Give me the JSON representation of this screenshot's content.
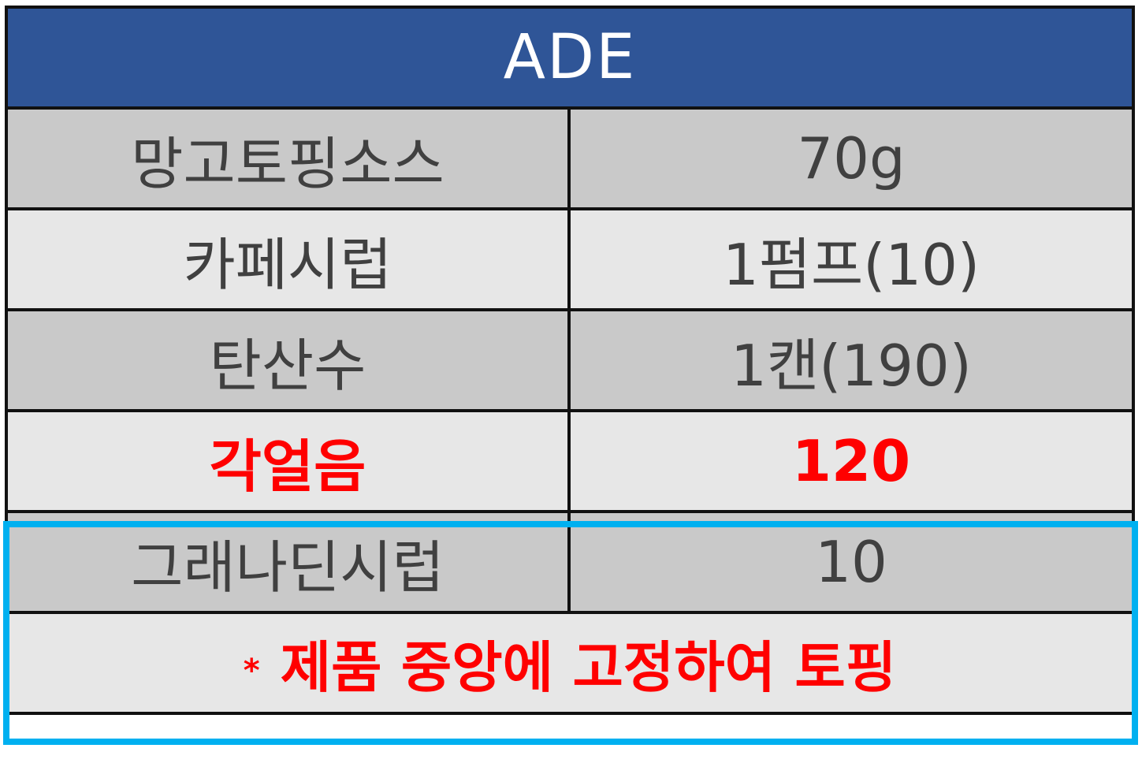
{
  "title": "ADE",
  "rows": [
    {
      "ingredient": "망고토핑소스",
      "amount": "70g"
    },
    {
      "ingredient": "카페시럽",
      "amount": "1펌프(10)"
    },
    {
      "ingredient": "탄산수",
      "amount": "1캔(190)"
    },
    {
      "ingredient": "각얼음",
      "amount": "120"
    },
    {
      "ingredient": "그래나딘시럽",
      "amount": "10"
    }
  ],
  "note": {
    "marker": "*",
    "text": "제품 중앙에 고정하여 토핑"
  },
  "colors": {
    "header_bg": "#2f5597",
    "dark_row": "#c9c9c9",
    "light_row": "#e7e7e7",
    "text": "#404040",
    "highlight_text": "#ff0000",
    "box_border": "#00b0f0"
  }
}
